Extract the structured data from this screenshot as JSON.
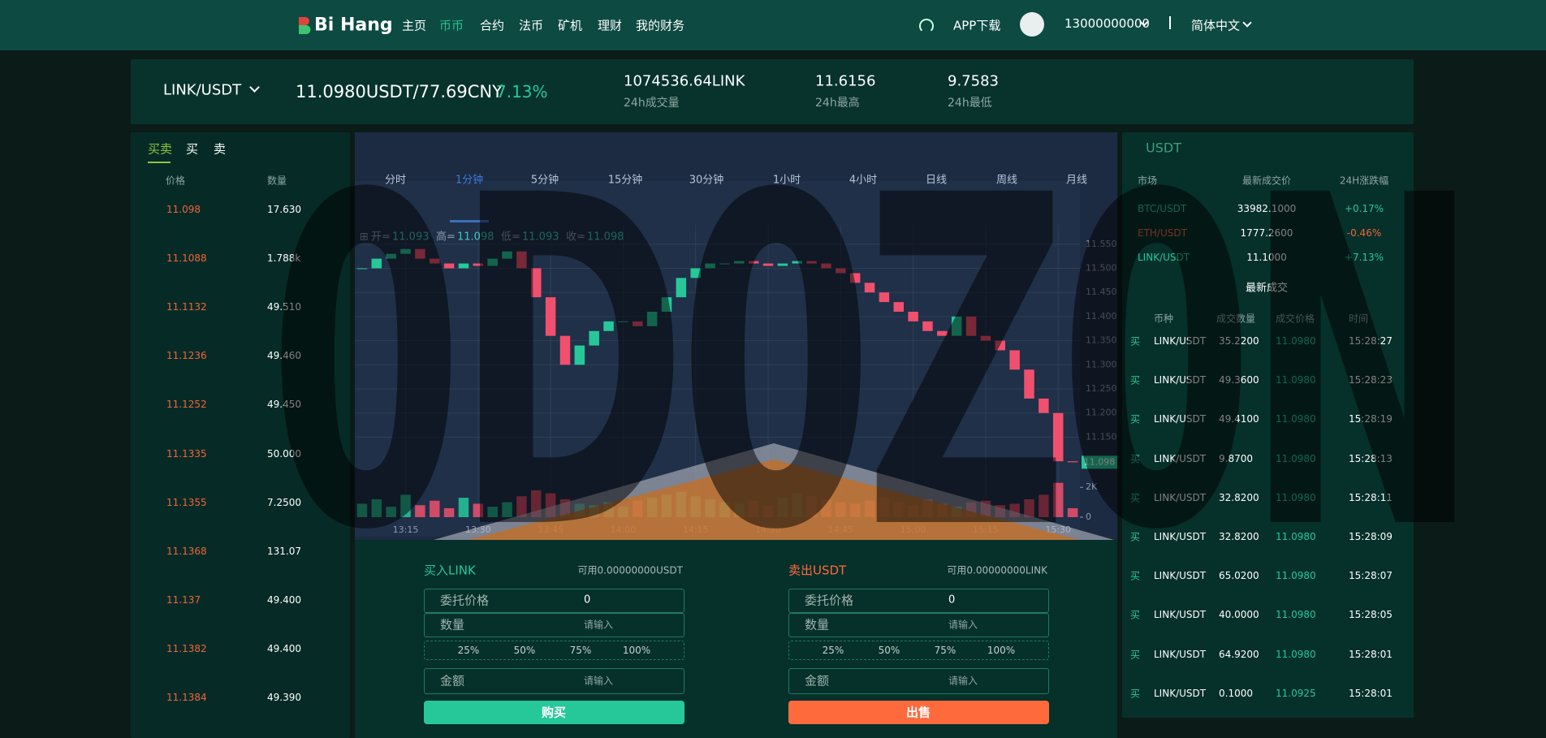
{
  "header": {
    "logo": "Bi Hang",
    "nav": [
      "主页",
      "币币",
      "合约",
      "法币",
      "矿机",
      "理财",
      "我的财务"
    ],
    "app_download": "APP下载",
    "account": "13000000000",
    "language": "简体中文"
  },
  "watermark": "0D0Z0N",
  "ticker": {
    "pair": "LINK/USDT",
    "price": "11.0980USDT/77.69CNY",
    "change": "7.13%",
    "stats": [
      {
        "value": "1074536.64LINK",
        "label": "24h成交量"
      },
      {
        "value": "11.6156",
        "label": "24h最高"
      },
      {
        "value": "9.7583",
        "label": "24h最低"
      }
    ]
  },
  "order_book": {
    "tabs": [
      "买卖",
      "买",
      "卖"
    ],
    "headers": [
      "价格",
      "数量"
    ],
    "rows": [
      [
        "11.098",
        "17.630"
      ],
      [
        "11.1088",
        "1.788k"
      ],
      [
        "11.1132",
        "49.510"
      ],
      [
        "11.1236",
        "49.460"
      ],
      [
        "11.1252",
        "49.450"
      ],
      [
        "11.1335",
        "50.000"
      ],
      [
        "11.1355",
        "7.2500"
      ],
      [
        "11.1368",
        "131.07"
      ],
      [
        "11.137",
        "49.400"
      ],
      [
        "11.1382",
        "49.400"
      ],
      [
        "11.1384",
        "49.390"
      ]
    ]
  },
  "kline": {
    "intervals": [
      "分时",
      "1分钟",
      "5分钟",
      "15分钟",
      "30分钟",
      "1小时",
      "4小时",
      "日线",
      "周线",
      "月线"
    ],
    "legend": [
      {
        "label": "开=",
        "value": "11.093"
      },
      {
        "label": "高=",
        "value": "11.098"
      },
      {
        "label": "低=",
        "value": "11.093"
      },
      {
        "label": "收=",
        "value": "11.098"
      }
    ],
    "last_price": "11.098",
    "ylim": [
      11.075,
      11.59
    ],
    "yticks": [
      {
        "value": 11.55,
        "label": "11.550"
      },
      {
        "value": 11.5,
        "label": "11.500"
      },
      {
        "value": 11.45,
        "label": "11.450"
      },
      {
        "value": 11.4,
        "label": "11.400"
      },
      {
        "value": 11.35,
        "label": "11.350"
      },
      {
        "value": 11.3,
        "label": "11.300"
      },
      {
        "value": 11.25,
        "label": "11.250"
      },
      {
        "value": 11.2,
        "label": "11.200"
      },
      {
        "value": 11.15,
        "label": "11.150"
      }
    ],
    "volume_ylim": [
      0,
      2500
    ],
    "volume_yticks": [
      {
        "value": 2000,
        "label": "2K"
      },
      0
    ],
    "x": [
      null,
      null,
      null,
      "13:15",
      null,
      null,
      null,
      null,
      "13:30",
      null,
      null,
      null,
      null,
      "13:45",
      null,
      null,
      null,
      null,
      "14:00",
      null,
      null,
      null,
      null,
      "14:15",
      null,
      null,
      null,
      null,
      "14:30",
      null,
      null,
      null,
      null,
      "14:45",
      null,
      null,
      null,
      null,
      "15:00",
      null,
      null,
      null,
      null,
      "15:15",
      null,
      null,
      null,
      null,
      "15:30",
      null
    ],
    "close": [
      11.5,
      11.52,
      11.53,
      11.54,
      11.52,
      11.51,
      11.5,
      11.51,
      11.505,
      11.52,
      11.535,
      11.5,
      11.44,
      11.36,
      11.3,
      11.34,
      11.37,
      11.39,
      11.39,
      11.38,
      11.41,
      11.44,
      11.48,
      11.5,
      11.51,
      11.51,
      11.515,
      11.51,
      11.505,
      11.51,
      11.515,
      11.51,
      11.5,
      11.49,
      11.47,
      11.45,
      11.43,
      11.41,
      11.39,
      11.37,
      11.36,
      11.4,
      11.36,
      11.35,
      11.33,
      11.29,
      11.23,
      11.2,
      11.1,
      11.098
    ],
    "volume": [
      900,
      1200,
      700,
      1500,
      800,
      1100,
      600,
      1300,
      900,
      700,
      1000,
      1400,
      1800,
      1600,
      1200,
      900,
      800,
      1000,
      700,
      1100,
      1300,
      1500,
      1700,
      1400,
      1200,
      1000,
      900,
      1100,
      800,
      1300,
      1600,
      1400,
      1200,
      1000,
      900,
      1100,
      1300,
      1000,
      800,
      1200,
      900,
      700,
      1000,
      1100,
      800,
      900,
      1200,
      1500,
      2300,
      600
    ],
    "up_color": "#26c89a",
    "down_color": "#f0506e"
  },
  "forms": [
    {
      "title": "买入LINK",
      "available": "可用0.00000000USDT",
      "price_label": "委托价格",
      "price_value": "0",
      "amount_label": "数量",
      "amount_placeholder": "请输入",
      "percents": [
        "25%",
        "50%",
        "75%",
        "100%"
      ],
      "total_label": "金额",
      "total_placeholder": "请输入",
      "button": "购买",
      "color": "#26c89a"
    },
    {
      "title": "卖出USDT",
      "available": "可用0.00000000LINK",
      "price_label": "委托价格",
      "price_value": "0",
      "amount_label": "数量",
      "amount_placeholder": "请输入",
      "percents": [
        "25%",
        "50%",
        "75%",
        "100%"
      ],
      "total_label": "金额",
      "total_placeholder": "请输入",
      "button": "出售",
      "color": "#ff6a3d"
    }
  ],
  "markets": {
    "title": "USDT",
    "headers": [
      "市场",
      "最新成交价",
      "24H涨跌幅"
    ],
    "rows": [
      [
        "BTC/USDT",
        "33982.1000",
        "+0.17%"
      ],
      [
        "ETH/USDT",
        "1777.2600",
        "-0.46%"
      ],
      [
        "LINK/USDT",
        "11.1000",
        "+7.13%"
      ]
    ]
  },
  "trades": {
    "title": "最新成交",
    "headers": [
      "币种",
      "成交数量",
      "成交价格",
      "时间"
    ],
    "rows": [
      [
        "买",
        "LINK/USDT",
        "35.2200",
        "11.0980",
        "15:28:27"
      ],
      [
        "买",
        "LINK/USDT",
        "49.3600",
        "11.0980",
        "15:28:23"
      ],
      [
        "买",
        "LINK/USDT",
        "49.4100",
        "11.0980",
        "15:28:19"
      ],
      [
        "买",
        "LINK/USDT",
        "9.8700",
        "11.0980",
        "15:28:13"
      ],
      [
        "买",
        "LINK/USDT",
        "32.8200",
        "11.0980",
        "15:28:11"
      ],
      [
        "买",
        "LINK/USDT",
        "32.8200",
        "11.0980",
        "15:28:09"
      ],
      [
        "买",
        "LINK/USDT",
        "65.0200",
        "11.0980",
        "15:28:07"
      ],
      [
        "买",
        "LINK/USDT",
        "40.0000",
        "11.0980",
        "15:28:05"
      ],
      [
        "买",
        "LINK/USDT",
        "64.9200",
        "11.0980",
        "15:28:01"
      ],
      [
        "买",
        "LINK/USDT",
        "0.1000",
        "11.0925",
        "15:28:01"
      ]
    ]
  }
}
